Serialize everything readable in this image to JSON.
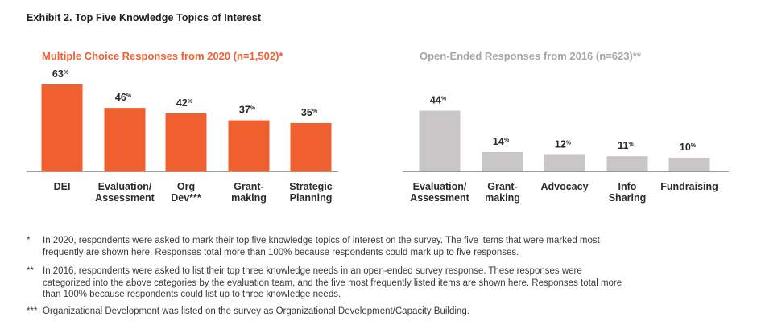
{
  "title": "Exhibit 2.  Top Five Knowledge Topics of Interest",
  "colors": {
    "mc_bar": "#ef5f2f",
    "oe_bar": "#c9c6c7",
    "mc_title": "#ef5f2f",
    "oe_title": "#a6a6a6",
    "axis": "#9a9a9a"
  },
  "chart_data": [
    {
      "type": "bar",
      "title": "Multiple Choice Responses from 2020 (n=1,502)*",
      "categories": [
        "DEI",
        "Evaluation/\nAssessment",
        "Org\nDev***",
        "Grant-\nmaking",
        "Strategic\nPlanning"
      ],
      "values": [
        63,
        46,
        42,
        37,
        35
      ],
      "value_suffix": "%",
      "ylim": [
        0,
        63
      ],
      "grid": false
    },
    {
      "type": "bar",
      "title": "Open-Ended Responses from 2016 (n=623)**",
      "categories": [
        "Evaluation/\nAssessment",
        "Grant-\nmaking",
        "Advocacy",
        "Info\nSharing",
        "Fundraising"
      ],
      "values": [
        44,
        14,
        12,
        11,
        10
      ],
      "value_suffix": "%",
      "ylim": [
        0,
        63
      ],
      "grid": false
    }
  ],
  "footnotes": [
    {
      "mark": "*",
      "text": "In 2020, respondents were asked to mark their top five knowledge topics of interest on the survey. The five items that were marked most frequently are shown here. Responses total more than 100% because respondents could mark up to five responses."
    },
    {
      "mark": "**",
      "text": "In 2016, respondents were asked to list their top three knowledge needs in an open-ended survey response. These responses were categorized into the above categories by the evaluation team, and the five most frequently listed items are shown here. Responses total more than 100% because respondents could list up to three knowledge needs."
    },
    {
      "mark": "***",
      "text": "Organizational Development was listed on the survey as Organizational Development/Capacity Building."
    }
  ]
}
